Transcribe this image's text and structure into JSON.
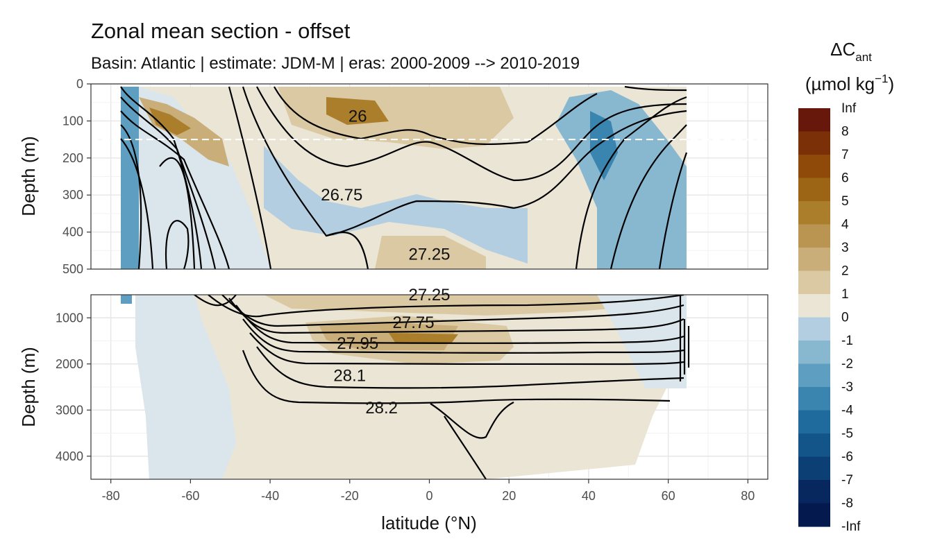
{
  "chart_data": {
    "type": "heatmap",
    "title": "Zonal mean section - offset",
    "subtitle": "Basin: Atlantic | estimate: JDM-M | eras: 2000-2009 --> 2010-2019",
    "xlabel": "latitude (°N)",
    "ylabel": "Depth (m)",
    "xlim": [
      -85,
      85
    ],
    "x_ticks": [
      -80,
      -60,
      -40,
      -20,
      0,
      20,
      40,
      60,
      80
    ],
    "x_tick_labels": [
      "-80",
      "-60",
      "-40",
      "-20",
      "0",
      "20",
      "40",
      "60",
      "80"
    ],
    "panels": [
      {
        "name": "upper",
        "ylim": [
          0,
          500
        ],
        "y_ticks": [
          0,
          100,
          200,
          300,
          400,
          500
        ],
        "y_tick_labels": [
          "0",
          "100",
          "200",
          "300",
          "400",
          "500"
        ],
        "reference_line_depth": 150
      },
      {
        "name": "lower",
        "ylim": [
          500,
          4500
        ],
        "y_ticks": [
          1000,
          2000,
          3000,
          4000
        ],
        "y_tick_labels": [
          "1000",
          "2000",
          "3000",
          "4000"
        ]
      }
    ],
    "legend": {
      "title_main": "ΔC",
      "title_sub": "ant",
      "unit_main": "(µmol kg",
      "unit_sup": "−1",
      "unit_close": ")",
      "position": "right",
      "labels": [
        "Inf",
        "8",
        "7",
        "6",
        "5",
        "4",
        "3",
        "2",
        "1",
        "0",
        "-1",
        "-2",
        "-3",
        "-4",
        "-5",
        "-6",
        "-7",
        "-8",
        "-Inf"
      ],
      "colors": [
        "#67180a",
        "#7b3008",
        "#8f4a09",
        "#9c6415",
        "#ab7e2c",
        "#ba9551",
        "#c9ae79",
        "#dbc9a4",
        "#ebe5d6",
        "#dbe6ec",
        "#b2cee0",
        "#88b7d0",
        "#5e9ec0",
        "#3a85af",
        "#1f6b9e",
        "#135489",
        "#0c3f74",
        "#07285e",
        "#041a4f"
      ]
    },
    "isopycnals": {
      "upper": [
        {
          "label": "26",
          "label_x": -18,
          "label_depth": 87,
          "x": [
            -72,
            -60,
            -50,
            -42,
            -36,
            -31,
            -22,
            -10,
            0,
            10,
            20,
            30,
            36,
            42,
            50,
            58,
            64
          ],
          "depth": [
            40,
            50,
            40,
            20,
            5,
            10,
            55,
            80,
            85,
            90,
            100,
            85,
            55,
            25,
            10,
            5,
            5
          ]
        },
        {
          "label": "26.75",
          "label_x": -22,
          "label_depth": 300,
          "x": [
            -78,
            -72,
            -66,
            -61,
            -56,
            -52,
            -47,
            -43,
            -38,
            -33,
            -25,
            -15,
            -5,
            0,
            5,
            10,
            20,
            30,
            40,
            45,
            50,
            54,
            58,
            62,
            64
          ],
          "depth": [
            5,
            20,
            50,
            90,
            150,
            210,
            265,
            290,
            300,
            305,
            308,
            300,
            288,
            285,
            290,
            300,
            320,
            310,
            250,
            200,
            150,
            110,
            75,
            40,
            25
          ]
        },
        {
          "label": "27.25",
          "label_x": 0,
          "label_depth": 460,
          "x": [
            -47,
            -35,
            -25,
            -15,
            -5,
            0,
            5,
            10,
            20,
            25,
            28
          ],
          "depth": [
            500,
            495,
            490,
            480,
            470,
            465,
            468,
            475,
            490,
            498,
            500
          ]
        }
      ],
      "lower": [
        {
          "label": "27.25",
          "label_x": 0,
          "label_depth": 500
        },
        {
          "label": "27.75",
          "label_x": -4,
          "label_depth": 1100
        },
        {
          "label": "27.95",
          "label_x": -18,
          "label_depth": 1550
        },
        {
          "label": "28.1",
          "label_x": -20,
          "label_depth": 2250
        },
        {
          "label": "28.2",
          "label_x": -12,
          "label_depth": 2950
        }
      ]
    }
  }
}
